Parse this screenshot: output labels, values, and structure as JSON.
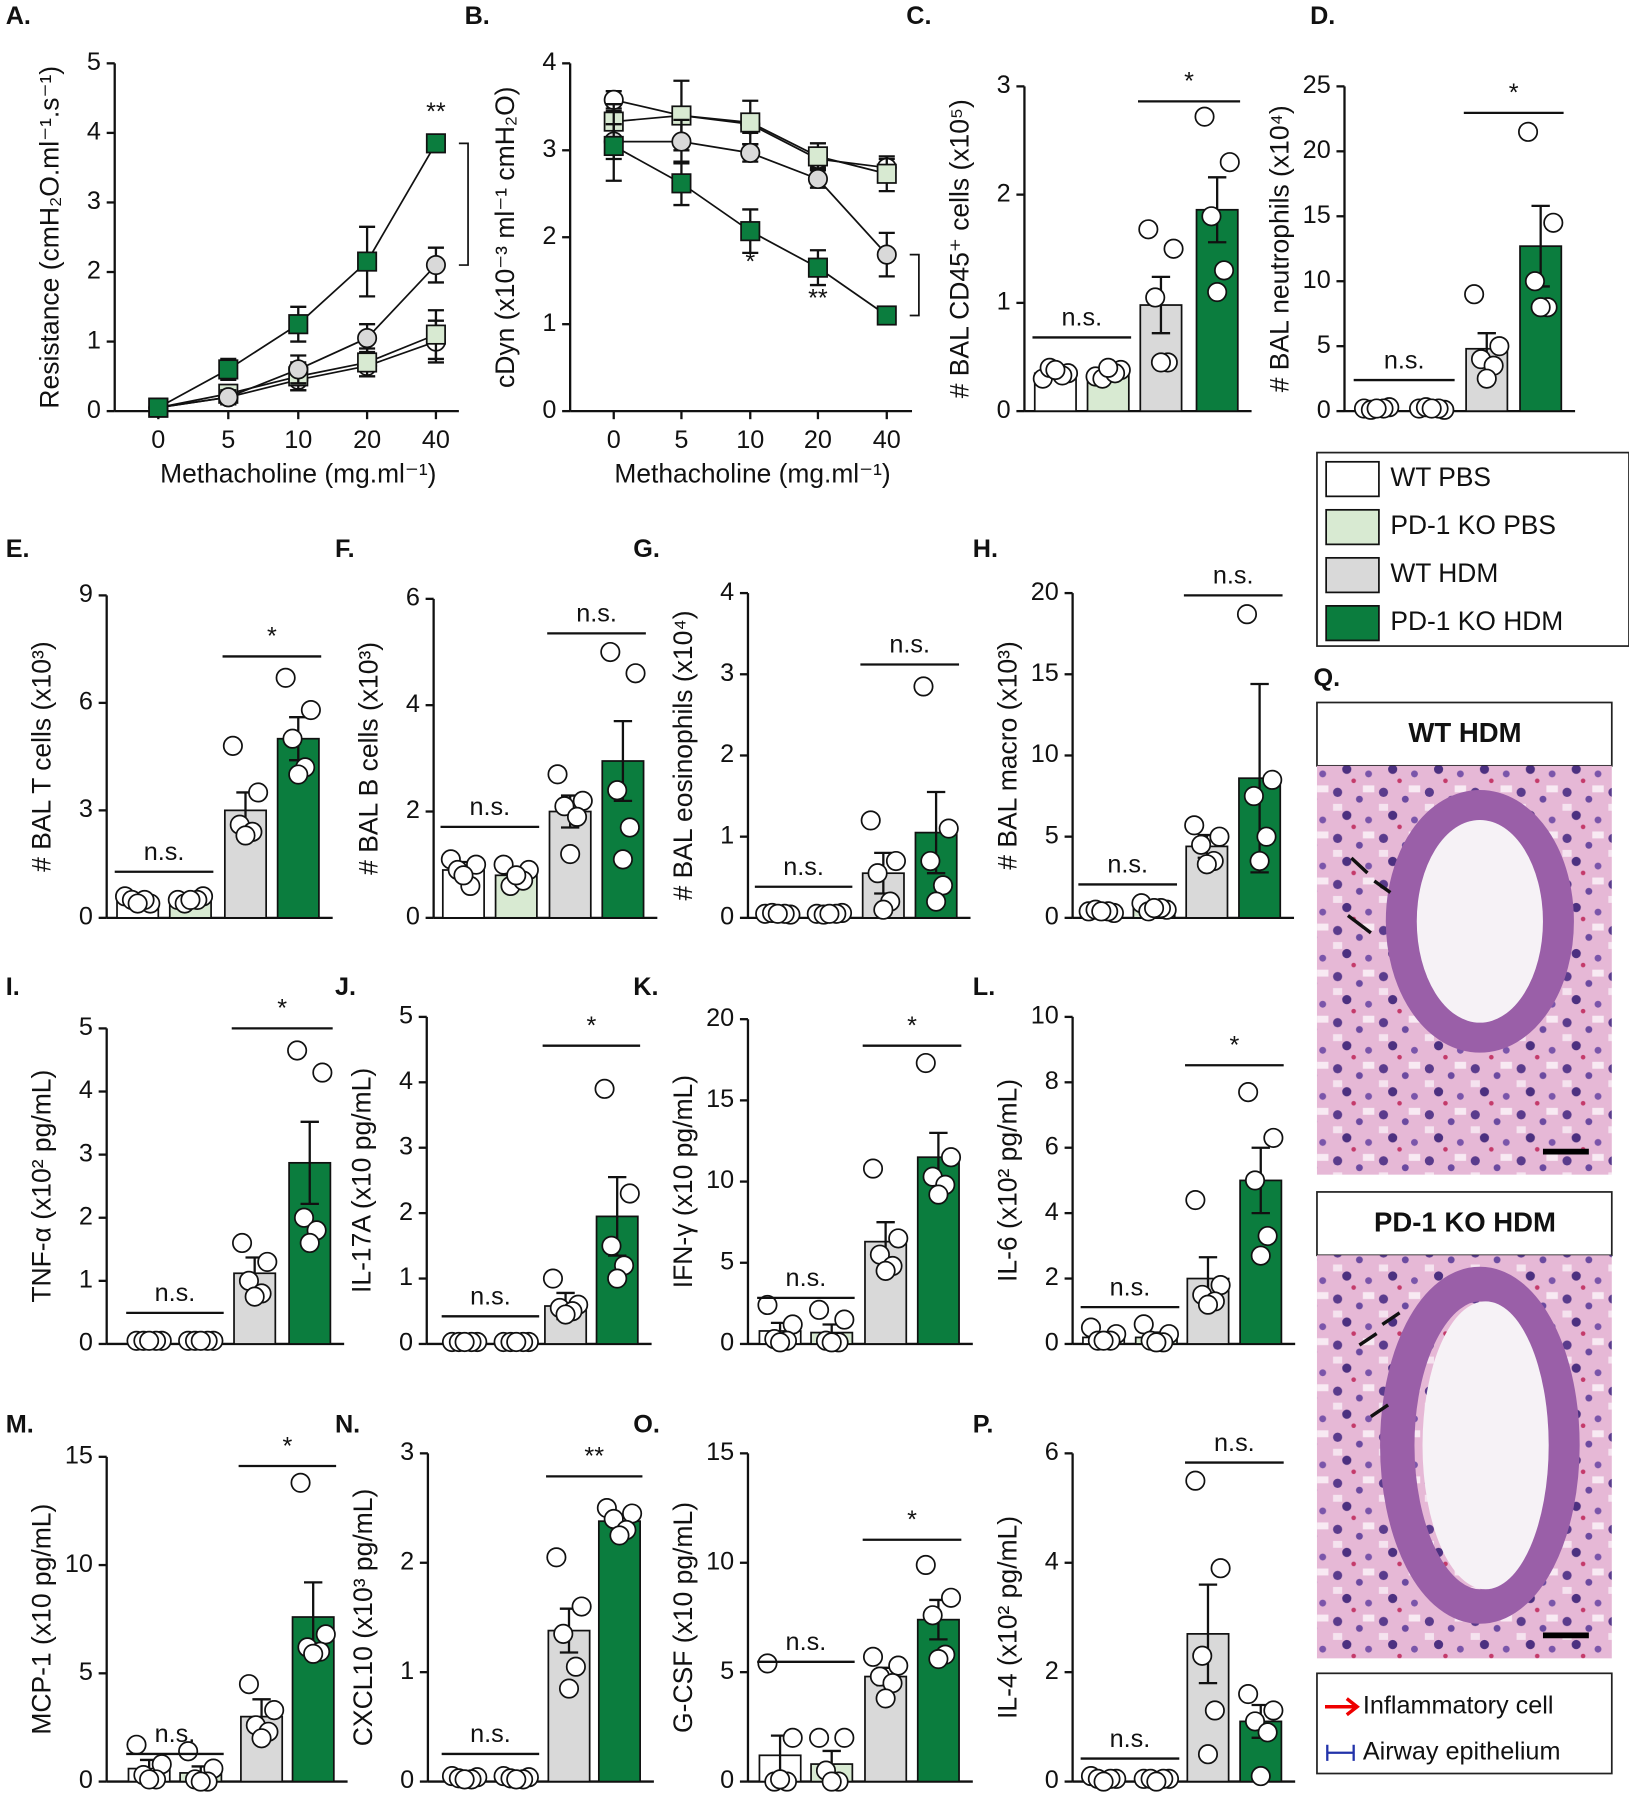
{
  "chart_data": [
    {
      "type": "line",
      "panel": "A.",
      "ylabel": "Resistance (cmH₂O.ml⁻¹.s⁻¹)",
      "xlabel": "Methacholine (mg.ml⁻¹)",
      "categories": [
        "0",
        "5",
        "10",
        "20",
        "40"
      ],
      "ylim": [
        0,
        5
      ],
      "yticks": [
        0,
        1,
        2,
        3,
        4,
        5
      ],
      "series": [
        {
          "color": "#ffffff",
          "marker": "circle",
          "values": [
            0.05,
            0.2,
            0.45,
            0.65,
            1.0
          ],
          "errors": [
            0.02,
            0.1,
            0.15,
            0.15,
            0.3
          ]
        },
        {
          "color": "#d8ead2",
          "marker": "square",
          "values": [
            0.05,
            0.25,
            0.5,
            0.7,
            1.1
          ],
          "errors": [
            0.02,
            0.1,
            0.2,
            0.2,
            0.35
          ]
        },
        {
          "color": "#d9d9d9",
          "marker": "circle",
          "values": [
            0.05,
            0.2,
            0.6,
            1.05,
            2.1
          ],
          "errors": [
            0.02,
            0.1,
            0.2,
            0.2,
            0.25
          ]
        },
        {
          "color": "#0b7d3e",
          "marker": "square",
          "values": [
            0.05,
            0.6,
            1.25,
            2.15,
            3.85
          ],
          "errors": [
            0.02,
            0.15,
            0.25,
            0.5,
            0.1
          ],
          "labels": [
            null,
            null,
            null,
            null,
            "**"
          ]
        }
      ]
    },
    {
      "type": "line",
      "panel": "B.",
      "ylabel": "cDyn (x10⁻³ ml⁻¹ cmH₂O)",
      "xlabel": "Methacholine (mg.ml⁻¹)",
      "categories": [
        "0",
        "5",
        "10",
        "20",
        "40"
      ],
      "ylim": [
        0,
        4
      ],
      "yticks": [
        0,
        1,
        2,
        3,
        4
      ],
      "series": [
        {
          "color": "#ffffff",
          "marker": "circle",
          "values": [
            3.58,
            3.4,
            3.3,
            2.9,
            2.8
          ],
          "errors": [
            0.1,
            0.1,
            0.1,
            0.1,
            0.1
          ]
        },
        {
          "color": "#d8ead2",
          "marker": "square",
          "values": [
            3.33,
            3.4,
            3.32,
            2.93,
            2.73
          ],
          "errors": [
            0.2,
            0.4,
            0.25,
            0.15,
            0.2
          ]
        },
        {
          "color": "#d9d9d9",
          "marker": "circle",
          "values": [
            3.1,
            3.1,
            2.97,
            2.67,
            1.8
          ],
          "errors": [
            0.2,
            0.25,
            0.1,
            0.1,
            0.25
          ]
        },
        {
          "color": "#0b7d3e",
          "marker": "square",
          "values": [
            3.05,
            2.62,
            2.07,
            1.65,
            1.1
          ],
          "errors": [
            0.4,
            0.25,
            0.25,
            0.2,
            0.1
          ],
          "labels": [
            null,
            null,
            "*",
            "**",
            null
          ]
        }
      ]
    },
    {
      "type": "bar",
      "panel": "C.",
      "ylabel": "# BAL CD45⁺ cells (x10⁵)",
      "ylim": [
        0,
        3
      ],
      "yticks": [
        0,
        1,
        2,
        3
      ],
      "values": [
        0.35,
        0.35,
        0.98,
        1.86
      ],
      "errors": [
        0.05,
        0.03,
        0.26,
        0.3
      ],
      "points": [
        [
          0.3,
          0.35,
          0.4,
          0.33,
          0.38
        ],
        [
          0.32,
          0.38,
          0.3,
          0.35,
          0.4
        ],
        [
          1.68,
          1.5,
          1.05,
          0.45,
          0.45
        ],
        [
          2.72,
          2.3,
          1.8,
          1.3,
          1.1
        ]
      ],
      "sig_pbs": "n.s.",
      "sig_hdm": "*"
    },
    {
      "type": "bar",
      "panel": "D.",
      "ylabel": "# BAL neutrophils (x10⁴)",
      "ylim": [
        0,
        25
      ],
      "yticks": [
        0,
        5,
        10,
        15,
        20,
        25
      ],
      "values": [
        0.2,
        0.2,
        4.8,
        12.7
      ],
      "errors": [
        0.1,
        0.1,
        1.2,
        3.1
      ],
      "points": [
        [
          0.2,
          0.3,
          0.1,
          0.2,
          0.2
        ],
        [
          0.2,
          0.1,
          0.3,
          0.2,
          0.2
        ],
        [
          9,
          5,
          4,
          3.5,
          2.5
        ],
        [
          21.5,
          14.5,
          10,
          8,
          8
        ]
      ],
      "sig_pbs": "n.s.",
      "sig_hdm": "*"
    },
    {
      "type": "bar",
      "panel": "E.",
      "ylabel": "# BAL T cells (x10³)",
      "ylim": [
        0,
        9
      ],
      "yticks": [
        0,
        3,
        6,
        9
      ],
      "values": [
        0.5,
        0.5,
        3.0,
        5.0
      ],
      "errors": [
        0.1,
        0.1,
        0.5,
        0.6
      ],
      "points": [
        [
          0.6,
          0.4,
          0.5,
          0.5,
          0.4
        ],
        [
          0.5,
          0.6,
          0.4,
          0.5,
          0.5
        ],
        [
          4.8,
          3.5,
          2.6,
          2.4,
          2.3
        ],
        [
          6.7,
          5.8,
          5.0,
          4.2,
          4.0
        ]
      ],
      "sig_pbs": "n.s.",
      "sig_hdm": "*"
    },
    {
      "type": "bar",
      "panel": "F.",
      "ylabel": "# BAL B cells (x10³)",
      "ylim": [
        0,
        6
      ],
      "yticks": [
        0,
        2,
        4,
        6
      ],
      "values": [
        0.9,
        0.8,
        2.0,
        2.95
      ],
      "errors": [
        0.15,
        0.15,
        0.3,
        0.75
      ],
      "points": [
        [
          1.1,
          1.0,
          0.9,
          0.6,
          0.8
        ],
        [
          1.0,
          0.9,
          0.6,
          0.7,
          0.8
        ],
        [
          2.7,
          2.2,
          2.1,
          1.9,
          1.2
        ],
        [
          5.0,
          4.6,
          2.4,
          1.7,
          1.1
        ]
      ],
      "sig_pbs": "n.s.",
      "sig_hdm": "n.s."
    },
    {
      "type": "bar",
      "panel": "G.",
      "ylabel": "# BAL eosinophils (x10⁴)",
      "ylim": [
        0,
        4
      ],
      "yticks": [
        0,
        1,
        2,
        3,
        4
      ],
      "values": [
        0.05,
        0.05,
        0.55,
        1.05
      ],
      "errors": [
        0.02,
        0.02,
        0.25,
        0.5
      ],
      "points": [
        [
          0.05,
          0.04,
          0.06,
          0.05,
          0.05
        ],
        [
          0.05,
          0.06,
          0.04,
          0.05,
          0.05
        ],
        [
          1.2,
          0.7,
          0.55,
          0.2,
          0.1
        ],
        [
          2.85,
          1.1,
          0.7,
          0.4,
          0.2
        ]
      ],
      "sig_pbs": "n.s.",
      "sig_hdm": "n.s."
    },
    {
      "type": "bar",
      "panel": "H.",
      "ylabel": "# BAL macro (x10³)",
      "ylim": [
        0,
        20
      ],
      "yticks": [
        0,
        5,
        10,
        15,
        20
      ],
      "values": [
        0.4,
        0.6,
        4.4,
        8.6
      ],
      "errors": [
        0.1,
        0.3,
        0.7,
        5.8
      ],
      "points": [
        [
          0.4,
          0.3,
          0.5,
          0.4,
          0.4
        ],
        [
          0.9,
          0.5,
          0.4,
          0.6,
          0.6
        ],
        [
          5.7,
          5.0,
          4.5,
          3.5,
          3.3
        ],
        [
          18.7,
          8.5,
          7.5,
          5.0,
          3.5
        ]
      ],
      "sig_pbs": "n.s.",
      "sig_hdm": "n.s."
    },
    {
      "type": "bar",
      "panel": "I.",
      "ylabel": "TNF-α (x10² pg/mL)",
      "ylim": [
        0,
        5
      ],
      "yticks": [
        0,
        1,
        2,
        3,
        4,
        5
      ],
      "values": [
        0.05,
        0.05,
        1.12,
        2.87
      ],
      "errors": [
        0.01,
        0.01,
        0.25,
        0.65
      ],
      "points": [
        [
          0.05,
          0.05,
          0.05,
          0.05,
          0.05
        ],
        [
          0.05,
          0.05,
          0.05,
          0.05,
          0.05
        ],
        [
          1.6,
          1.3,
          1.0,
          0.8,
          0.75
        ],
        [
          4.65,
          4.3,
          2.0,
          1.8,
          1.6
        ]
      ],
      "sig_pbs": "n.s.",
      "sig_hdm": "*"
    },
    {
      "type": "bar",
      "panel": "J.",
      "ylabel": "IL-17A (x10 pg/mL)",
      "ylim": [
        0,
        5
      ],
      "yticks": [
        0,
        1,
        2,
        3,
        4,
        5
      ],
      "values": [
        0.03,
        0.03,
        0.58,
        1.95
      ],
      "errors": [
        0.01,
        0.01,
        0.2,
        0.6
      ],
      "points": [
        [
          0.03,
          0.03,
          0.03,
          0.03,
          0.03
        ],
        [
          0.03,
          0.03,
          0.03,
          0.03,
          0.03
        ],
        [
          1.0,
          0.6,
          0.55,
          0.5,
          0.45
        ],
        [
          3.9,
          2.3,
          1.5,
          1.2,
          1.0
        ]
      ],
      "sig_pbs": "n.s.",
      "sig_hdm": "*"
    },
    {
      "type": "bar",
      "panel": "K.",
      "ylabel": "IFN-γ (x10 pg/mL)",
      "ylim": [
        0,
        20
      ],
      "yticks": [
        0,
        5,
        10,
        15,
        20
      ],
      "values": [
        0.8,
        0.7,
        6.3,
        11.5
      ],
      "errors": [
        0.5,
        0.5,
        1.2,
        1.5
      ],
      "points": [
        [
          2.4,
          1.2,
          0.3,
          0.2,
          0.1
        ],
        [
          2.1,
          1.5,
          0.2,
          0.1,
          0.1
        ],
        [
          10.8,
          6.5,
          5.5,
          4.8,
          4.5
        ],
        [
          17.3,
          11.5,
          10.3,
          9.8,
          9.2
        ]
      ],
      "sig_pbs": "n.s.",
      "sig_hdm": "*"
    },
    {
      "type": "bar",
      "panel": "L.",
      "ylabel": "IL-6 (x10² pg/mL)",
      "ylim": [
        0,
        10
      ],
      "yticks": [
        0,
        2,
        4,
        6,
        8,
        10
      ],
      "values": [
        0.2,
        0.2,
        2.0,
        5.0
      ],
      "errors": [
        0.1,
        0.15,
        0.65,
        1.0
      ],
      "points": [
        [
          0.5,
          0.3,
          0.1,
          0.1,
          0.1
        ],
        [
          0.6,
          0.3,
          0.1,
          0.05,
          0.05
        ],
        [
          4.4,
          1.8,
          1.5,
          1.3,
          1.2
        ],
        [
          7.7,
          6.3,
          5.0,
          3.3,
          2.7
        ]
      ],
      "sig_pbs": "n.s.",
      "sig_hdm": "*"
    },
    {
      "type": "bar",
      "panel": "M.",
      "ylabel": "MCP-1 (x10 pg/mL)",
      "ylim": [
        0,
        15
      ],
      "yticks": [
        0,
        5,
        10,
        15
      ],
      "values": [
        0.6,
        0.4,
        3.0,
        7.6
      ],
      "errors": [
        0.4,
        0.3,
        0.8,
        1.6
      ],
      "points": [
        [
          1.7,
          0.8,
          0.3,
          0.1,
          0.1
        ],
        [
          1.4,
          0.6,
          0.1,
          0.0,
          0.0
        ],
        [
          4.5,
          3.3,
          2.6,
          2.3,
          2.0
        ],
        [
          13.8,
          6.8,
          6.2,
          6.0,
          5.9
        ]
      ],
      "sig_pbs": "n.s.",
      "sig_hdm": "*"
    },
    {
      "type": "bar",
      "panel": "N.",
      "ylabel": "CXCL10 (x10³ pg/mL)",
      "ylim": [
        0,
        3
      ],
      "yticks": [
        0,
        1,
        2,
        3
      ],
      "values": [
        0.03,
        0.03,
        1.38,
        2.38
      ],
      "errors": [
        0.01,
        0.01,
        0.2,
        0.06
      ],
      "points": [
        [
          0.05,
          0.04,
          0.03,
          0.02,
          0.02
        ],
        [
          0.05,
          0.04,
          0.03,
          0.02,
          0.02
        ],
        [
          2.05,
          1.6,
          1.35,
          1.05,
          0.85
        ],
        [
          2.5,
          2.45,
          2.4,
          2.3,
          2.25
        ]
      ],
      "sig_pbs": "n.s.",
      "sig_hdm": "**"
    },
    {
      "type": "bar",
      "panel": "O.",
      "ylabel": "G-CSF (x10 pg/mL)",
      "ylim": [
        0,
        15
      ],
      "yticks": [
        0,
        5,
        10,
        15
      ],
      "values": [
        1.2,
        0.8,
        4.8,
        7.4
      ],
      "errors": [
        0.9,
        0.6,
        0.4,
        0.9
      ],
      "points": [
        [
          5.4,
          2.0,
          0.0,
          0.0,
          0.1
        ],
        [
          2.0,
          2.0,
          0.5,
          0.0,
          0.0
        ],
        [
          5.7,
          5.3,
          4.8,
          4.5,
          3.8
        ],
        [
          9.9,
          8.4,
          7.6,
          5.8,
          5.6
        ]
      ],
      "sig_pbs": "n.s.",
      "sig_hdm": "*"
    },
    {
      "type": "bar",
      "panel": "P.",
      "ylabel": "IL-4 (x10² pg/mL)",
      "ylim": [
        0,
        6
      ],
      "yticks": [
        0,
        2,
        4,
        6
      ],
      "values": [
        0.05,
        0.05,
        2.7,
        1.1
      ],
      "errors": [
        0.02,
        0.02,
        0.9,
        0.3
      ],
      "points": [
        [
          0.1,
          0.05,
          0.05,
          0.05,
          0.0
        ],
        [
          0.05,
          0.05,
          0.05,
          0.05,
          0.0
        ],
        [
          5.5,
          3.9,
          2.3,
          1.3,
          0.5
        ],
        [
          1.6,
          1.3,
          1.1,
          0.9,
          0.1
        ]
      ],
      "sig_pbs": "n.s.",
      "sig_hdm": "n.s."
    }
  ],
  "legend": {
    "items": [
      {
        "name": "WT PBS",
        "color": "#ffffff"
      },
      {
        "name": "PD-1 KO PBS",
        "color": "#d8ead2"
      },
      {
        "name": "WT HDM",
        "color": "#d9d9d9"
      },
      {
        "name": "PD-1 KO HDM",
        "color": "#0b7d3e"
      }
    ]
  },
  "panel_q": {
    "panel": "Q.",
    "image_titles": [
      "WT HDM",
      "PD-1 KO HDM"
    ],
    "key": [
      "Inflammatory cell",
      "Airway epithelium"
    ]
  }
}
